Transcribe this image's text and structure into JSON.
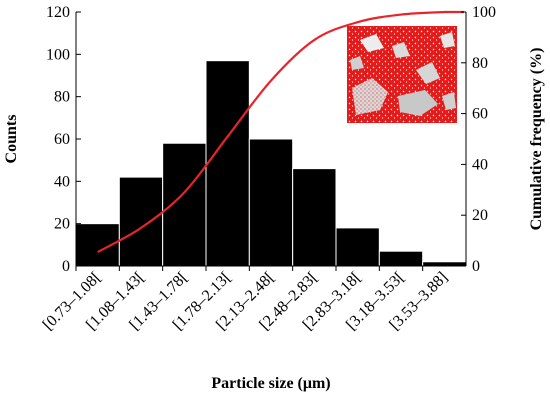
{
  "chart_data": {
    "type": "bar",
    "categories": [
      "[0.73–1.08[",
      "[1.08–1.43[",
      "[1.43–1.78[",
      "[1.78–2.13[",
      "[2.13–2.48[",
      "[2.48–2.83[",
      "[2.83–3.18[",
      "[3.18–3.53[",
      "[3.53–3.88]"
    ],
    "series": [
      {
        "values": [
          20,
          42,
          58,
          97,
          60,
          46,
          18,
          7,
          2
        ]
      },
      {
        "values": [
          5.5,
          15,
          29,
          51,
          73,
          89,
          96,
          99,
          100
        ]
      }
    ],
    "xlabel": "Particle size (μm)",
    "ylabel": "Counts",
    "y2label": "Cumulative frequency (%)",
    "ylim": [
      0,
      120
    ],
    "y2lim": [
      0,
      100
    ],
    "yticks": [
      "0",
      "20",
      "40",
      "60",
      "80",
      "100",
      "120"
    ],
    "y2ticks": [
      "0",
      "20",
      "40",
      "60",
      "80",
      "100"
    ],
    "grid": false,
    "bar_color": "#000000",
    "line_color": "#e8242b",
    "inset": "particle-image-inset"
  }
}
